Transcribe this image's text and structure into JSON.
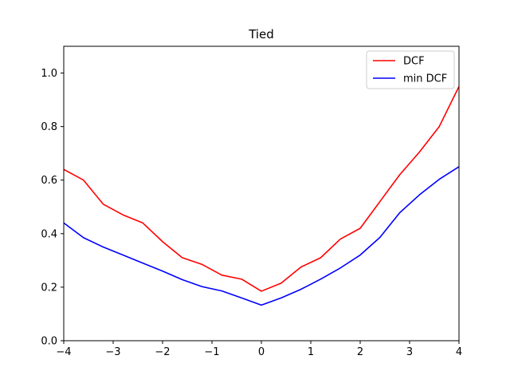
{
  "chart_data": {
    "type": "line",
    "title": "Tied",
    "xlabel": "",
    "ylabel": "",
    "xlim": [
      -4,
      4
    ],
    "ylim": [
      0,
      1.1
    ],
    "xticks": [
      -4,
      -3,
      -2,
      -1,
      0,
      1,
      2,
      3,
      4
    ],
    "xtick_labels": [
      "−4",
      "−3",
      "−2",
      "−1",
      "0",
      "1",
      "2",
      "3",
      "4"
    ],
    "yticks": [
      0.0,
      0.2,
      0.4,
      0.6,
      0.8,
      1.0
    ],
    "ytick_labels": [
      "0.0",
      "0.2",
      "0.4",
      "0.6",
      "0.8",
      "1.0"
    ],
    "grid": false,
    "legend_position": "top-right",
    "x": [
      -4.0,
      -3.6,
      -3.2,
      -2.8,
      -2.4,
      -2.0,
      -1.6,
      -1.2,
      -0.8,
      -0.4,
      0.0,
      0.4,
      0.8,
      1.2,
      1.6,
      2.0,
      2.4,
      2.8,
      3.2,
      3.6,
      4.0
    ],
    "series": [
      {
        "name": "DCF",
        "color": "#ff0000",
        "values": [
          0.64,
          0.6,
          0.51,
          0.47,
          0.44,
          0.37,
          0.31,
          0.285,
          0.245,
          0.23,
          0.185,
          0.215,
          0.275,
          0.31,
          0.38,
          0.42,
          0.52,
          0.62,
          0.705,
          0.8,
          0.95
        ]
      },
      {
        "name": "min DCF",
        "color": "#0000ff",
        "values": [
          0.44,
          0.385,
          0.35,
          0.32,
          0.29,
          0.26,
          0.228,
          0.202,
          0.186,
          0.16,
          0.133,
          0.16,
          0.192,
          0.23,
          0.272,
          0.32,
          0.386,
          0.478,
          0.545,
          0.603,
          0.65
        ]
      }
    ]
  }
}
